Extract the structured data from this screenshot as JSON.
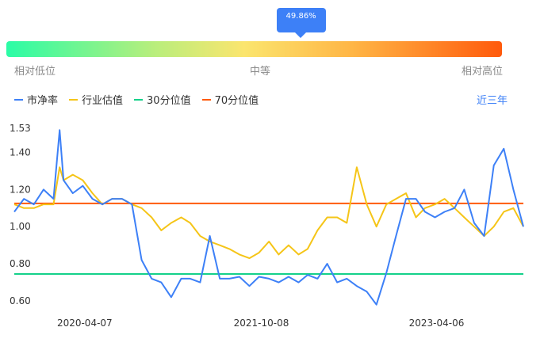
{
  "gauge": {
    "percentile_label": "49.86%",
    "percentile": 0.4986,
    "left_label": "相对低位",
    "mid_label": "中等",
    "right_label": "相对高位"
  },
  "period_label": "近三年",
  "colors": {
    "pb": "#3d80f7",
    "industry": "#f5c518",
    "p30": "#14d18a",
    "p70": "#ff5a0c"
  },
  "chart_data": {
    "type": "line",
    "ylim": [
      0.6,
      1.53
    ],
    "yticks": [
      "1.53",
      "1.40",
      "1.20",
      "1.00",
      "0.80",
      "0.60"
    ],
    "xtick_labels": [
      "2020-04-07",
      "2021-10-08",
      "2023-04-06"
    ],
    "x_range": [
      "2019-09",
      "2024-01"
    ],
    "series": [
      {
        "name": "市净率",
        "x": [
          "2019-09",
          "2019-10",
          "2019-11",
          "2019-12",
          "2020-01",
          "2020-01-20",
          "2020-02",
          "2020-03",
          "2020-04",
          "2020-05",
          "2020-06",
          "2020-07",
          "2020-08",
          "2020-09",
          "2020-10",
          "2020-11",
          "2020-12",
          "2021-01",
          "2021-02",
          "2021-03",
          "2021-04",
          "2021-05",
          "2021-06",
          "2021-07",
          "2021-08",
          "2021-09",
          "2021-10",
          "2021-11",
          "2021-12",
          "2022-01",
          "2022-02",
          "2022-03",
          "2022-04",
          "2022-05",
          "2022-06",
          "2022-07",
          "2022-08",
          "2022-09",
          "2022-10",
          "2022-11",
          "2022-12",
          "2023-01",
          "2023-02",
          "2023-03",
          "2023-04",
          "2023-05",
          "2023-06",
          "2023-07",
          "2023-08",
          "2023-09",
          "2023-10",
          "2023-11",
          "2023-12",
          "2024-01"
        ],
        "values": [
          1.08,
          1.15,
          1.12,
          1.2,
          1.15,
          1.52,
          1.25,
          1.18,
          1.22,
          1.15,
          1.12,
          1.15,
          1.15,
          1.12,
          0.82,
          0.72,
          0.7,
          0.62,
          0.72,
          0.72,
          0.7,
          0.95,
          0.72,
          0.72,
          0.73,
          0.68,
          0.73,
          0.72,
          0.7,
          0.73,
          0.7,
          0.74,
          0.72,
          0.8,
          0.7,
          0.72,
          0.68,
          0.65,
          0.58,
          0.75,
          0.95,
          1.15,
          1.15,
          1.08,
          1.05,
          1.08,
          1.1,
          1.2,
          1.02,
          0.95,
          1.33,
          1.42,
          1.2,
          1.0
        ]
      },
      {
        "name": "行业估值",
        "x": [
          "2019-09",
          "2019-10",
          "2019-11",
          "2019-12",
          "2020-01",
          "2020-01-20",
          "2020-02",
          "2020-03",
          "2020-04",
          "2020-05",
          "2020-06",
          "2020-07",
          "2020-08",
          "2020-09",
          "2020-10",
          "2020-11",
          "2020-12",
          "2021-01",
          "2021-02",
          "2021-03",
          "2021-04",
          "2021-05",
          "2021-06",
          "2021-07",
          "2021-08",
          "2021-09",
          "2021-10",
          "2021-11",
          "2021-12",
          "2022-01",
          "2022-02",
          "2022-03",
          "2022-04",
          "2022-05",
          "2022-06",
          "2022-07",
          "2022-08",
          "2022-09",
          "2022-10",
          "2022-11",
          "2022-12",
          "2023-01",
          "2023-02",
          "2023-03",
          "2023-04",
          "2023-05",
          "2023-06",
          "2023-07",
          "2023-08",
          "2023-09",
          "2023-10",
          "2023-11",
          "2023-12",
          "2024-01"
        ],
        "values": [
          1.12,
          1.1,
          1.1,
          1.12,
          1.12,
          1.32,
          1.25,
          1.28,
          1.25,
          1.18,
          1.12,
          1.15,
          1.15,
          1.12,
          1.1,
          1.05,
          0.98,
          1.02,
          1.05,
          1.02,
          0.95,
          0.92,
          0.9,
          0.88,
          0.85,
          0.83,
          0.86,
          0.92,
          0.85,
          0.9,
          0.85,
          0.88,
          0.98,
          1.05,
          1.05,
          1.02,
          1.32,
          1.12,
          1.0,
          1.12,
          1.15,
          1.18,
          1.05,
          1.1,
          1.12,
          1.15,
          1.1,
          1.05,
          1.0,
          0.95,
          1.0,
          1.08,
          1.1,
          1.0
        ]
      },
      {
        "name": "30分位值",
        "constant": 0.745
      },
      {
        "name": "70分位值",
        "constant": 1.125
      }
    ]
  }
}
